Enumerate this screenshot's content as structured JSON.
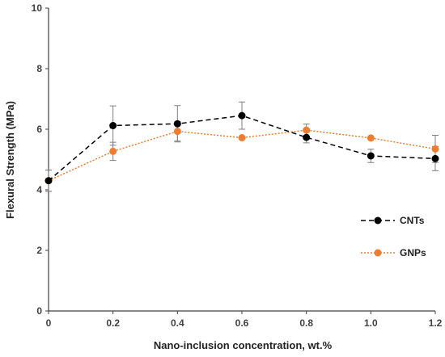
{
  "chart_data": {
    "type": "line",
    "title": "",
    "xlabel": "Nano-inclusion concentration, wt.%",
    "ylabel": "Flexural Strength (MPa)",
    "xlim": [
      0,
      1.2
    ],
    "ylim": [
      0,
      10
    ],
    "x_ticks": [
      "0",
      "0.2",
      "0.4",
      "0.6",
      "0.8",
      "1.0",
      "1.2"
    ],
    "y_ticks": [
      "0",
      "2",
      "4",
      "6",
      "8",
      "10"
    ],
    "grid": false,
    "legend_position": "right",
    "x": [
      0,
      0.2,
      0.4,
      0.6,
      0.8,
      1.0,
      1.2
    ],
    "series": [
      {
        "name": "CNTs",
        "values": [
          4.3,
          6.12,
          6.18,
          6.45,
          5.73,
          5.12,
          5.03
        ],
        "error": [
          0.35,
          0.65,
          0.6,
          0.45,
          0.18,
          0.22,
          0.4
        ],
        "color": "#000000",
        "line_style": "dashed"
      },
      {
        "name": "GNPs",
        "values": [
          4.3,
          5.27,
          5.93,
          5.72,
          5.97,
          5.71,
          5.35
        ],
        "error": [
          0.35,
          0.3,
          0.32,
          0.0,
          0.2,
          0.0,
          0.45
        ],
        "color": "#ED7D31",
        "line_style": "dotted"
      }
    ]
  }
}
